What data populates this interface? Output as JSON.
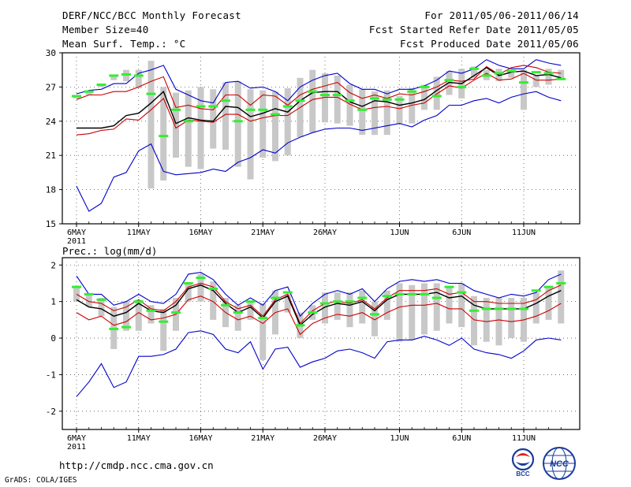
{
  "header": {
    "title": "DERF/NCC/BCC Monthly Forecast",
    "member_size": "Member Size=40",
    "variable": "Mean Surf. Temp.: °C",
    "period": "For 2011/05/06-2011/06/14",
    "started": "Fcst Started Refer Date 2011/05/05",
    "produced": "Fcst Produced Date 2011/05/06"
  },
  "footer": {
    "url": "http://cmdp.ncc.cma.gov.cn",
    "grads": "GrADS: COLA/IGES",
    "logo_bcc": "BCC",
    "logo_ncc": "NCC"
  },
  "colors": {
    "mean": "#000000",
    "spread": "#cc0000",
    "extreme": "#0000cc",
    "ensemble_bar": "#c8c8c8",
    "observed": "#33ee33"
  },
  "chart_data": [
    {
      "type": "line",
      "title": "Mean Surf. Temp.: °C",
      "xlabel": "",
      "ylabel": "°C",
      "ylim": [
        15,
        30
      ],
      "yticks": [
        15,
        18,
        21,
        24,
        27,
        30
      ],
      "grid": true,
      "x": [
        "5/6",
        "5/7",
        "5/8",
        "5/9",
        "5/10",
        "5/11",
        "5/12",
        "5/13",
        "5/14",
        "5/15",
        "5/16",
        "5/17",
        "5/18",
        "5/19",
        "5/20",
        "5/21",
        "5/22",
        "5/23",
        "5/24",
        "5/25",
        "5/26",
        "5/27",
        "5/28",
        "5/29",
        "5/30",
        "5/31",
        "6/1",
        "6/2",
        "6/3",
        "6/4",
        "6/5",
        "6/6",
        "6/7",
        "6/8",
        "6/9",
        "6/10",
        "6/11",
        "6/12",
        "6/13",
        "6/14"
      ],
      "xtick_labels": [
        {
          "index": 0,
          "label": "6MAY"
        },
        {
          "index": 5,
          "label": "11MAY"
        },
        {
          "index": 10,
          "label": "16MAY"
        },
        {
          "index": 15,
          "label": "21MAY"
        },
        {
          "index": 20,
          "label": "26MAY"
        },
        {
          "index": 26,
          "label": "1JUN"
        },
        {
          "index": 31,
          "label": "6JUN"
        },
        {
          "index": 36,
          "label": "11JUN"
        }
      ],
      "year_label": "2011",
      "series": [
        {
          "name": "ensemble max",
          "role": "max",
          "values": [
            26.4,
            26.7,
            26.8,
            27.3,
            27.3,
            28.2,
            28.5,
            28.9,
            26.8,
            26.3,
            25.8,
            25.6,
            27.4,
            27.5,
            26.9,
            27.0,
            26.6,
            25.8,
            27.0,
            27.6,
            28.0,
            28.2,
            27.3,
            26.8,
            26.8,
            26.4,
            26.8,
            26.8,
            27.1,
            27.6,
            28.4,
            28.2,
            28.6,
            29.4,
            28.9,
            28.6,
            28.6,
            29.4,
            29.1,
            28.9
          ]
        },
        {
          "name": "spread upper",
          "role": "upper",
          "values": [
            25.9,
            26.3,
            26.3,
            26.6,
            26.6,
            27.0,
            27.5,
            27.9,
            25.2,
            25.4,
            25.1,
            25.0,
            26.3,
            26.3,
            25.4,
            26.3,
            26.2,
            25.4,
            26.3,
            26.8,
            27.1,
            27.4,
            26.5,
            26.0,
            26.3,
            26.0,
            26.4,
            26.3,
            26.6,
            27.0,
            27.6,
            27.5,
            27.7,
            28.8,
            28.1,
            28.7,
            28.9,
            28.7,
            28.3,
            28.2
          ]
        },
        {
          "name": "ensemble mean",
          "role": "mean",
          "values": [
            23.4,
            23.4,
            23.4,
            23.6,
            24.5,
            24.7,
            25.6,
            26.6,
            23.8,
            24.3,
            24.1,
            24.0,
            25.3,
            25.2,
            24.4,
            24.7,
            25.1,
            24.8,
            25.8,
            26.5,
            26.6,
            26.6,
            25.7,
            25.3,
            25.8,
            25.7,
            25.4,
            25.6,
            25.9,
            26.7,
            27.4,
            27.3,
            28.0,
            28.7,
            28.0,
            28.3,
            28.4,
            28.0,
            28.1,
            27.8
          ]
        },
        {
          "name": "spread lower",
          "role": "lower",
          "values": [
            22.8,
            22.9,
            23.2,
            23.3,
            24.2,
            24.1,
            25.0,
            26.0,
            23.4,
            24.1,
            24.0,
            23.9,
            24.6,
            24.6,
            24.0,
            24.3,
            24.5,
            24.5,
            25.2,
            25.9,
            26.1,
            26.1,
            25.5,
            25.0,
            25.2,
            25.3,
            25.1,
            25.4,
            25.6,
            26.4,
            27.1,
            26.9,
            27.6,
            28.2,
            27.6,
            27.7,
            28.2,
            27.6,
            27.6,
            27.7
          ]
        },
        {
          "name": "ensemble min",
          "role": "min",
          "values": [
            18.3,
            16.1,
            16.8,
            19.1,
            19.5,
            21.4,
            22.0,
            19.6,
            19.3,
            19.4,
            19.5,
            19.8,
            19.6,
            20.4,
            20.8,
            21.5,
            21.2,
            22.1,
            22.6,
            23.0,
            23.3,
            23.4,
            23.4,
            23.2,
            23.4,
            23.6,
            23.8,
            23.5,
            24.1,
            24.5,
            25.4,
            25.4,
            25.8,
            26.0,
            25.6,
            26.1,
            26.4,
            26.6,
            26.1,
            25.8
          ]
        },
        {
          "name": "observed",
          "role": "observed",
          "values": [
            26.2,
            26.6,
            27.2,
            28.0,
            28.1,
            28.0,
            26.4,
            22.7,
            25.0,
            24.0,
            25.3,
            25.3,
            25.8,
            24.0,
            25.0,
            25.0,
            24.6,
            25.3,
            25.8,
            26.6,
            26.3,
            26.3,
            25.8,
            25.0,
            26.0,
            25.9,
            25.9,
            26.6,
            27.0,
            26.2,
            27.6,
            27.0,
            28.6,
            28.0,
            28.2,
            28.4,
            27.4,
            28.3,
            28.2,
            27.7
          ]
        },
        {
          "name": "ensemble range top",
          "role": "bar_top",
          "values": [
            26.2,
            26.5,
            27.2,
            28.0,
            28.5,
            28.5,
            29.3,
            27.0,
            26.5,
            26.7,
            27.0,
            26.8,
            27.4,
            27.5,
            26.8,
            26.7,
            26.6,
            26.9,
            27.8,
            28.5,
            28.2,
            28.0,
            27.2,
            26.8,
            26.6,
            26.7,
            26.2,
            26.9,
            27.2,
            27.9,
            28.4,
            28.6,
            28.8,
            28.5,
            28.6,
            28.5,
            28.5,
            28.0,
            28.6,
            28.5
          ]
        },
        {
          "name": "ensemble range bottom",
          "role": "bar_bottom",
          "values": [
            26.0,
            26.3,
            27.0,
            27.6,
            27.5,
            26.9,
            18.1,
            18.8,
            20.8,
            20.0,
            19.8,
            21.6,
            21.5,
            20.0,
            18.9,
            20.8,
            20.5,
            21.0,
            22.6,
            23.0,
            23.9,
            23.8,
            23.6,
            22.8,
            22.8,
            22.8,
            23.8,
            23.8,
            25.0,
            25.0,
            26.3,
            26.0,
            27.8,
            27.6,
            27.5,
            27.8,
            25.0,
            27.0,
            27.2,
            27.6
          ]
        }
      ]
    },
    {
      "type": "line",
      "title": "Prec.: log(mm/d)",
      "xlabel": "",
      "ylabel": "log(mm/d)",
      "ylim": [
        -2.5,
        2.2
      ],
      "yticks": [
        -2,
        -1,
        0,
        1,
        2
      ],
      "grid": true,
      "x": [
        "5/6",
        "5/7",
        "5/8",
        "5/9",
        "5/10",
        "5/11",
        "5/12",
        "5/13",
        "5/14",
        "5/15",
        "5/16",
        "5/17",
        "5/18",
        "5/19",
        "5/20",
        "5/21",
        "5/22",
        "5/23",
        "5/24",
        "5/25",
        "5/26",
        "5/27",
        "5/28",
        "5/29",
        "5/30",
        "5/31",
        "6/1",
        "6/2",
        "6/3",
        "6/4",
        "6/5",
        "6/6",
        "6/7",
        "6/8",
        "6/9",
        "6/10",
        "6/11",
        "6/12",
        "6/13",
        "6/14"
      ],
      "xtick_labels": [
        {
          "index": 0,
          "label": "6MAY"
        },
        {
          "index": 5,
          "label": "11MAY"
        },
        {
          "index": 10,
          "label": "16MAY"
        },
        {
          "index": 15,
          "label": "21MAY"
        },
        {
          "index": 20,
          "label": "26MAY"
        },
        {
          "index": 26,
          "label": "1JUN"
        },
        {
          "index": 31,
          "label": "6JUN"
        },
        {
          "index": 36,
          "label": "11JUN"
        }
      ],
      "year_label": "2011",
      "series": [
        {
          "name": "ensemble max",
          "role": "max",
          "values": [
            1.7,
            1.2,
            1.2,
            0.9,
            1.0,
            1.2,
            1.0,
            0.95,
            1.2,
            1.75,
            1.8,
            1.6,
            1.2,
            0.9,
            1.1,
            0.9,
            1.3,
            1.4,
            0.6,
            0.95,
            1.2,
            1.3,
            1.2,
            1.35,
            1.0,
            1.35,
            1.55,
            1.6,
            1.55,
            1.6,
            1.5,
            1.5,
            1.3,
            1.2,
            1.1,
            1.2,
            1.15,
            1.25,
            1.6,
            1.75
          ]
        },
        {
          "name": "spread upper",
          "role": "upper",
          "values": [
            1.2,
            1.0,
            0.95,
            0.75,
            0.85,
            1.05,
            0.8,
            0.75,
            1.0,
            1.4,
            1.5,
            1.4,
            1.0,
            0.8,
            0.9,
            0.6,
            1.05,
            1.2,
            0.4,
            0.75,
            0.95,
            1.0,
            0.95,
            1.05,
            0.8,
            1.1,
            1.3,
            1.3,
            1.3,
            1.35,
            1.2,
            1.25,
            1.0,
            1.0,
            0.95,
            0.95,
            0.95,
            1.05,
            1.3,
            1.45
          ]
        },
        {
          "name": "ensemble mean",
          "role": "mean",
          "values": [
            1.05,
            0.85,
            0.8,
            0.6,
            0.7,
            0.95,
            0.75,
            0.7,
            0.9,
            1.35,
            1.45,
            1.3,
            0.95,
            0.7,
            0.85,
            0.55,
            1.0,
            1.15,
            0.35,
            0.65,
            0.85,
            0.95,
            0.9,
            1.0,
            0.75,
            1.05,
            1.2,
            1.2,
            1.2,
            1.25,
            1.1,
            1.15,
            0.9,
            0.8,
            0.8,
            0.8,
            0.8,
            0.95,
            1.15,
            1.3
          ]
        },
        {
          "name": "spread lower",
          "role": "lower",
          "values": [
            0.7,
            0.5,
            0.6,
            0.35,
            0.45,
            0.7,
            0.5,
            0.55,
            0.65,
            1.05,
            1.15,
            1.0,
            0.7,
            0.5,
            0.6,
            0.4,
            0.7,
            0.8,
            0.1,
            0.4,
            0.55,
            0.65,
            0.6,
            0.7,
            0.5,
            0.7,
            0.85,
            0.9,
            0.9,
            0.95,
            0.8,
            0.8,
            0.5,
            0.45,
            0.5,
            0.45,
            0.5,
            0.6,
            0.75,
            0.95
          ]
        },
        {
          "name": "ensemble min",
          "role": "min",
          "values": [
            -1.6,
            -1.2,
            -0.7,
            -1.35,
            -1.2,
            -0.5,
            -0.5,
            -0.45,
            -0.3,
            0.15,
            0.2,
            0.1,
            -0.3,
            -0.4,
            -0.1,
            -0.85,
            -0.3,
            -0.25,
            -0.8,
            -0.65,
            -0.55,
            -0.35,
            -0.3,
            -0.4,
            -0.55,
            -0.1,
            -0.05,
            -0.05,
            0.05,
            -0.05,
            -0.2,
            0.0,
            -0.3,
            -0.4,
            -0.45,
            -0.55,
            -0.35,
            -0.05,
            0.0,
            -0.05
          ]
        },
        {
          "name": "observed",
          "role": "observed",
          "values": [
            1.4,
            1.2,
            1.05,
            0.25,
            0.3,
            1.0,
            0.75,
            0.45,
            0.7,
            1.5,
            1.65,
            1.35,
            0.9,
            0.7,
            1.0,
            0.55,
            1.1,
            1.25,
            0.35,
            0.7,
            0.95,
            1.0,
            1.0,
            1.1,
            0.65,
            1.15,
            1.2,
            1.2,
            1.2,
            1.1,
            1.4,
            1.25,
            0.75,
            0.8,
            0.8,
            0.8,
            0.8,
            1.3,
            1.4,
            1.5
          ]
        },
        {
          "name": "ensemble range top",
          "role": "bar_top",
          "values": [
            1.4,
            1.2,
            1.1,
            0.85,
            1.0,
            1.05,
            0.9,
            0.8,
            1.1,
            1.5,
            1.75,
            1.55,
            1.1,
            0.9,
            1.0,
            0.95,
            1.3,
            1.2,
            0.7,
            0.9,
            1.25,
            1.25,
            1.25,
            1.3,
            1.0,
            1.3,
            1.5,
            1.45,
            1.5,
            1.5,
            1.4,
            1.5,
            1.15,
            1.1,
            1.1,
            1.1,
            1.1,
            1.25,
            1.4,
            1.85
          ]
        },
        {
          "name": "ensemble range bottom",
          "role": "bar_bottom",
          "values": [
            1.0,
            0.85,
            0.6,
            -0.3,
            0.2,
            0.2,
            0.4,
            -0.35,
            0.2,
            1.0,
            1.0,
            0.5,
            0.3,
            0.2,
            0.5,
            -0.6,
            0.1,
            0.7,
            0.0,
            0.5,
            0.4,
            0.5,
            0.3,
            0.4,
            0.05,
            0.5,
            -0.1,
            -0.05,
            0.1,
            0.2,
            0.4,
            0.3,
            -0.2,
            -0.1,
            -0.2,
            0.0,
            -0.1,
            0.4,
            0.5,
            0.4
          ]
        }
      ]
    }
  ]
}
